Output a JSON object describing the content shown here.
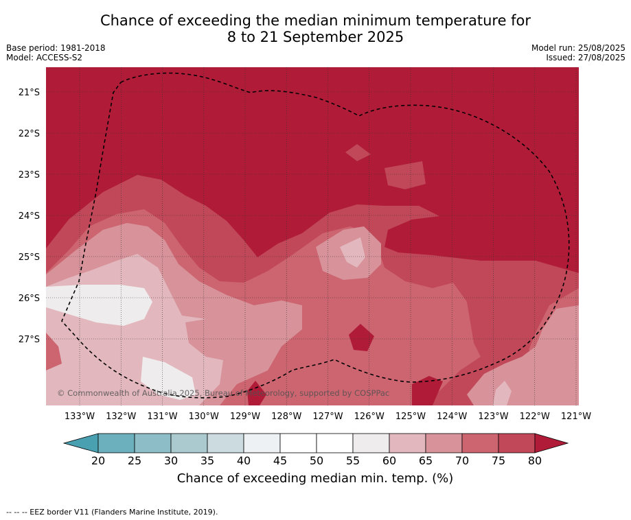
{
  "title_line1": "Chance of exceeding the median minimum temperature for",
  "title_line2": "8 to 21 September 2025",
  "base_period": "Base period: 1981-2018",
  "model": "Model: ACCESS-S2",
  "model_run": "Model run: 25/08/2025",
  "issued": "Issued: 27/08/2025",
  "copyright": "© Commonwealth of Australia 2025, Bureau of Meteorology, supported by COSPPac",
  "lat_labels": [
    "21°S",
    "22°S",
    "23°S",
    "24°S",
    "25°S",
    "26°S",
    "27°S"
  ],
  "lon_labels": [
    "133°W",
    "132°W",
    "131°W",
    "130°W",
    "129°W",
    "128°W",
    "127°W",
    "126°W",
    "125°W",
    "124°W",
    "123°W",
    "122°W",
    "121°W"
  ],
  "colorbar": {
    "ticks": [
      "20",
      "25",
      "30",
      "35",
      "40",
      "45",
      "50",
      "55",
      "60",
      "65",
      "70",
      "75",
      "80"
    ],
    "colors": [
      "#6cb0be",
      "#8dbdc7",
      "#aacad0",
      "#cbdbe0",
      "#eef1f3",
      "#ffffff",
      "#ffffff",
      "#eeecec",
      "#e2b8be",
      "#d7929a",
      "#cc6570",
      "#c14858"
    ],
    "low_color": "#48a0b0",
    "high_color": "#b01c38",
    "label": "Chance of exceeding median min. temp. (%)"
  },
  "footer": "--  --  -- EEZ border V11 (Flanders Marine Institute, 2019)."
}
